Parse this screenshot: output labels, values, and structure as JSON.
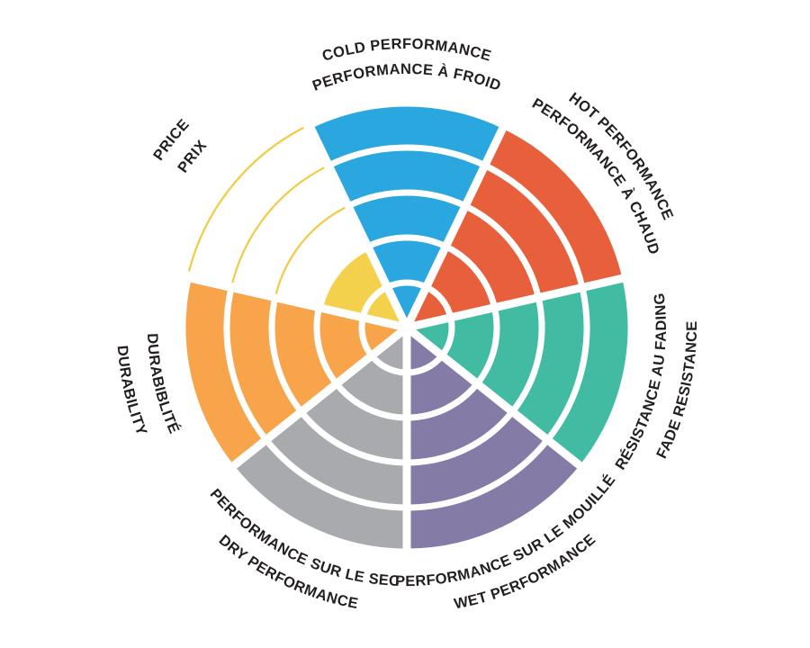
{
  "page": {
    "background": "#FFFFFF",
    "figure_title": ""
  },
  "chart_data": {
    "type": "pie",
    "subtype": "polar-sector-performance-wheel",
    "rings": 5,
    "max_value": 5,
    "start": "top",
    "direction": "clockwise",
    "ring_divider_color": "#FFFFFF",
    "label_color": "#231F20",
    "background": "#FFFFFF",
    "categories": [
      "COLD PERFORMANCE",
      "HOT PERFORMANCE",
      "FADE RESISTANCE",
      "WET PERFORMANCE",
      "DRY PERFORMANCE",
      "DURABILITY",
      "PRICE"
    ],
    "values": [
      5,
      5,
      5,
      5,
      5,
      5,
      2
    ],
    "sectors": [
      {
        "id": "cold-performance",
        "label_en": "COLD PERFORMANCE",
        "label_fr": "PERFORMANCE À FROID",
        "value": 5,
        "color": "#2AA7DE",
        "outline_color": "#2AA7DE"
      },
      {
        "id": "hot-performance",
        "label_en": "HOT PERFORMANCE",
        "label_fr": "PERFORMANCE À CHAUD",
        "value": 5,
        "color": "#E8603B",
        "outline_color": "#E8603B"
      },
      {
        "id": "fade-resistance",
        "label_en": "FADE RESISTANCE",
        "label_fr": "RÉSISTANCE AU FADING",
        "value": 5,
        "color": "#41BCA2",
        "outline_color": "#41BCA2"
      },
      {
        "id": "wet-performance",
        "label_en": "WET PERFORMANCE",
        "label_fr": "PERFORMANCE SUR LE MOUILLÉ",
        "value": 5,
        "color": "#857BA7",
        "outline_color": "#857BA7"
      },
      {
        "id": "dry-performance",
        "label_en": "DRY PERFORMANCE",
        "label_fr": "PERFORMANCE SUR LE SEC",
        "value": 5,
        "color": "#A8AAAD",
        "outline_color": "#A8AAAD"
      },
      {
        "id": "durability",
        "label_en": "DURABILITY",
        "label_fr": "DURABIBLITÉ",
        "value": 5,
        "color": "#F8A44B",
        "outline_color": "#F8A44B"
      },
      {
        "id": "price",
        "label_en": "PRICE",
        "label_fr": "PRIX",
        "value": 2,
        "color": "#F4D14D",
        "outline_color": "#F2CA43"
      }
    ]
  }
}
